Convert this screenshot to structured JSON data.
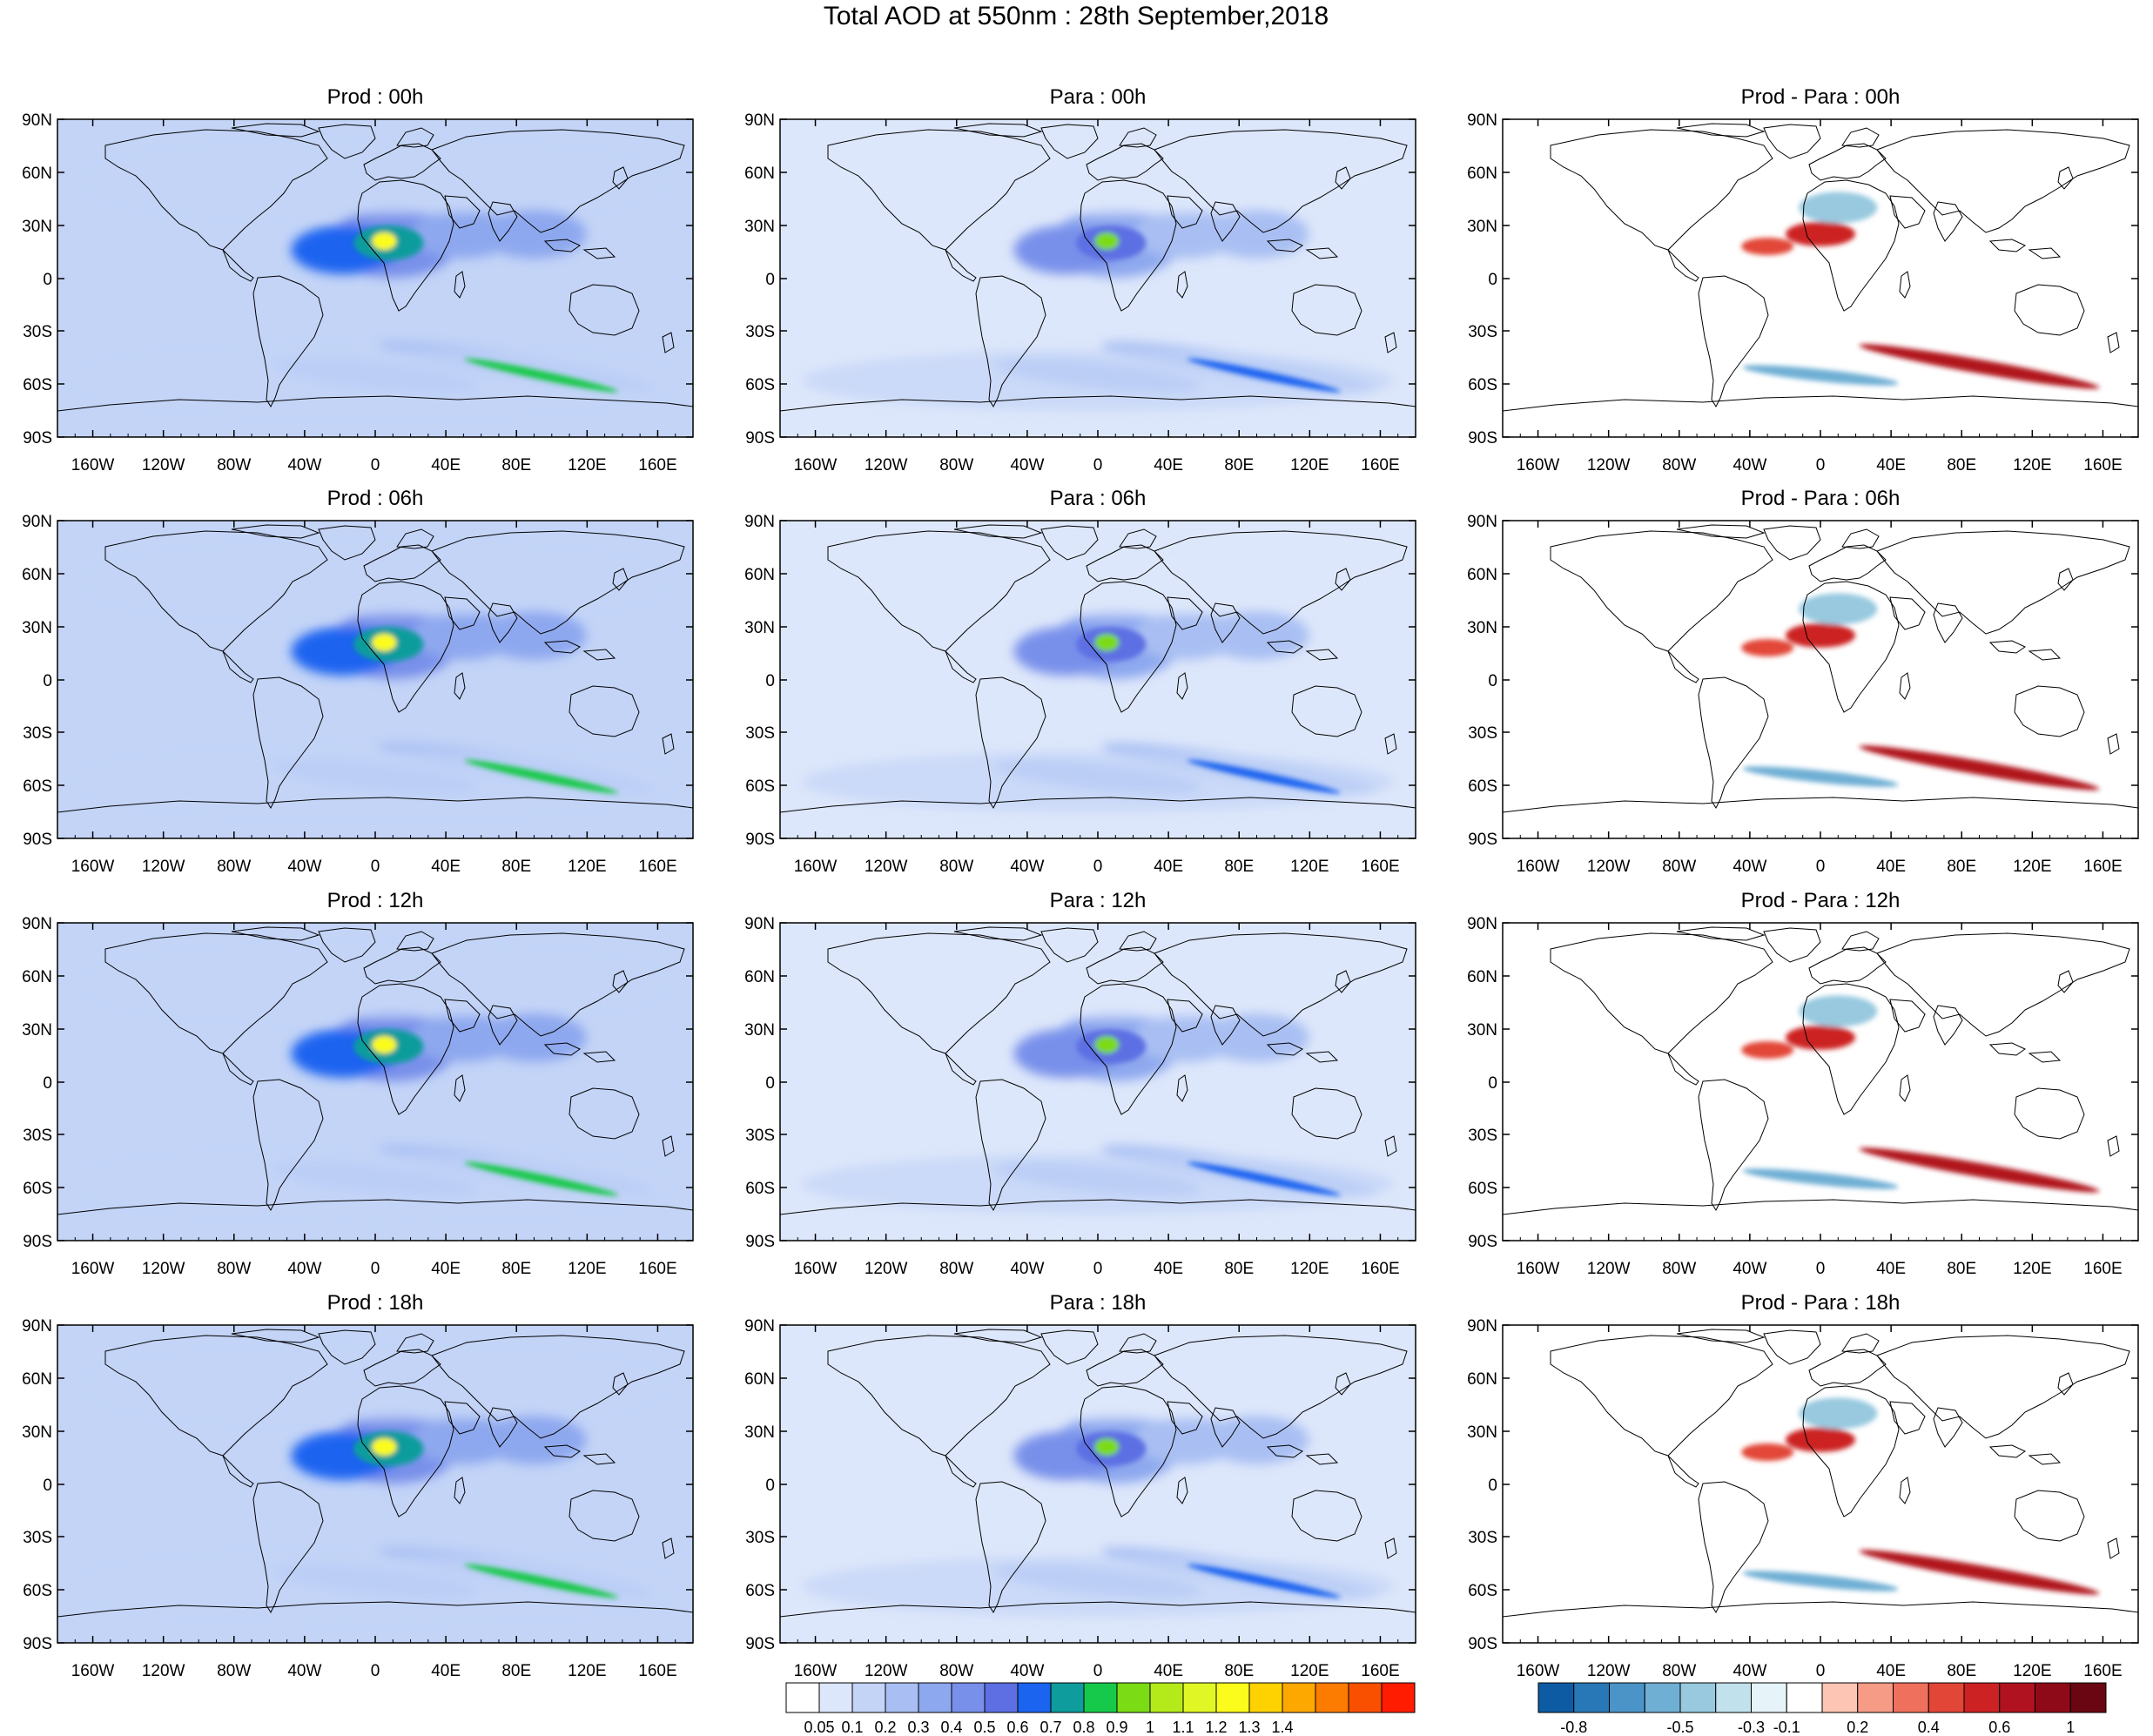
{
  "figure": {
    "title": "Total AOD at 550nm : 28th September,2018"
  },
  "axes": {
    "lat_ticks": [
      "90N",
      "60N",
      "30N",
      "0",
      "30S",
      "60S",
      "90S"
    ],
    "lon_ticks": [
      "160W",
      "120W",
      "80W",
      "40W",
      "0",
      "40E",
      "80E",
      "120E",
      "160E"
    ]
  },
  "rows": [
    {
      "hour": "00h",
      "titles": [
        "Prod : 00h",
        "Para : 00h",
        "Prod - Para : 00h"
      ]
    },
    {
      "hour": "06h",
      "titles": [
        "Prod : 06h",
        "Para : 06h",
        "Prod - Para : 06h"
      ]
    },
    {
      "hour": "12h",
      "titles": [
        "Prod : 12h",
        "Para : 12h",
        "Prod - Para : 12h"
      ]
    },
    {
      "hour": "18h",
      "titles": [
        "Prod : 18h",
        "Para : 18h",
        "Prod - Para : 18h"
      ]
    }
  ],
  "colorbars": {
    "aod": {
      "colors": [
        "#ffffff",
        "#dde7fb",
        "#c3d4f7",
        "#a9bff3",
        "#8ea8ef",
        "#7890ea",
        "#5d6fe3",
        "#1a64f0",
        "#0e9c9c",
        "#16c94a",
        "#7bdb14",
        "#b4ea1a",
        "#e1f725",
        "#fbfb1c",
        "#fdd200",
        "#fca800",
        "#fb7c00",
        "#f95000",
        "#ff1c00"
      ],
      "labels": [
        "0.05",
        "0.1",
        "0.2",
        "0.3",
        "0.4",
        "0.5",
        "0.6",
        "0.7",
        "0.8",
        "0.9",
        "1",
        "1.1",
        "1.2",
        "1.3",
        "1.4"
      ]
    },
    "diff": {
      "colors": [
        "#0d5ca3",
        "#2878b8",
        "#4a94c8",
        "#70afd4",
        "#98c9df",
        "#c1e1ec",
        "#e6f3f8",
        "#ffffff",
        "#fcc5b4",
        "#f69c86",
        "#ef705c",
        "#e24637",
        "#cc2224",
        "#b0121f",
        "#8f0a18",
        "#6a0512"
      ],
      "labels": [
        "-0.8",
        "-0.5",
        "-0.3",
        "-0.1",
        "0.2",
        "0.4",
        "0.6",
        "1"
      ]
    }
  },
  "map_fields": {
    "aod_features": [
      {
        "name": "saharan-dust-core",
        "lon": 10,
        "lat": 20,
        "value": 1.2
      },
      {
        "name": "atlantic-dust-plume",
        "lon": -18,
        "lat": 16,
        "value": 0.6
      },
      {
        "name": "middle-east-haze",
        "lon": 50,
        "lat": 25,
        "value": 0.35
      },
      {
        "name": "south-asia-haze",
        "lon": 90,
        "lat": 25,
        "value": 0.3
      },
      {
        "name": "southern-ocean-band",
        "lon": 80,
        "lat": -50,
        "value": 0.8
      },
      {
        "name": "south-atlantic-band",
        "lon": 0,
        "lat": -55,
        "value": 0.25
      }
    ],
    "diff_features": [
      {
        "name": "sahara-positive",
        "lon": 0,
        "lat": 25,
        "value": 0.5
      },
      {
        "name": "atlantic-positive",
        "lon": -30,
        "lat": 18,
        "value": 0.4
      },
      {
        "name": "europe-negative",
        "lon": 10,
        "lat": 40,
        "value": -0.3
      },
      {
        "name": "southern-ocean-positive",
        "lon": 90,
        "lat": -50,
        "value": 0.6
      },
      {
        "name": "south-atlantic-negative",
        "lon": 0,
        "lat": -55,
        "value": -0.4
      }
    ]
  }
}
